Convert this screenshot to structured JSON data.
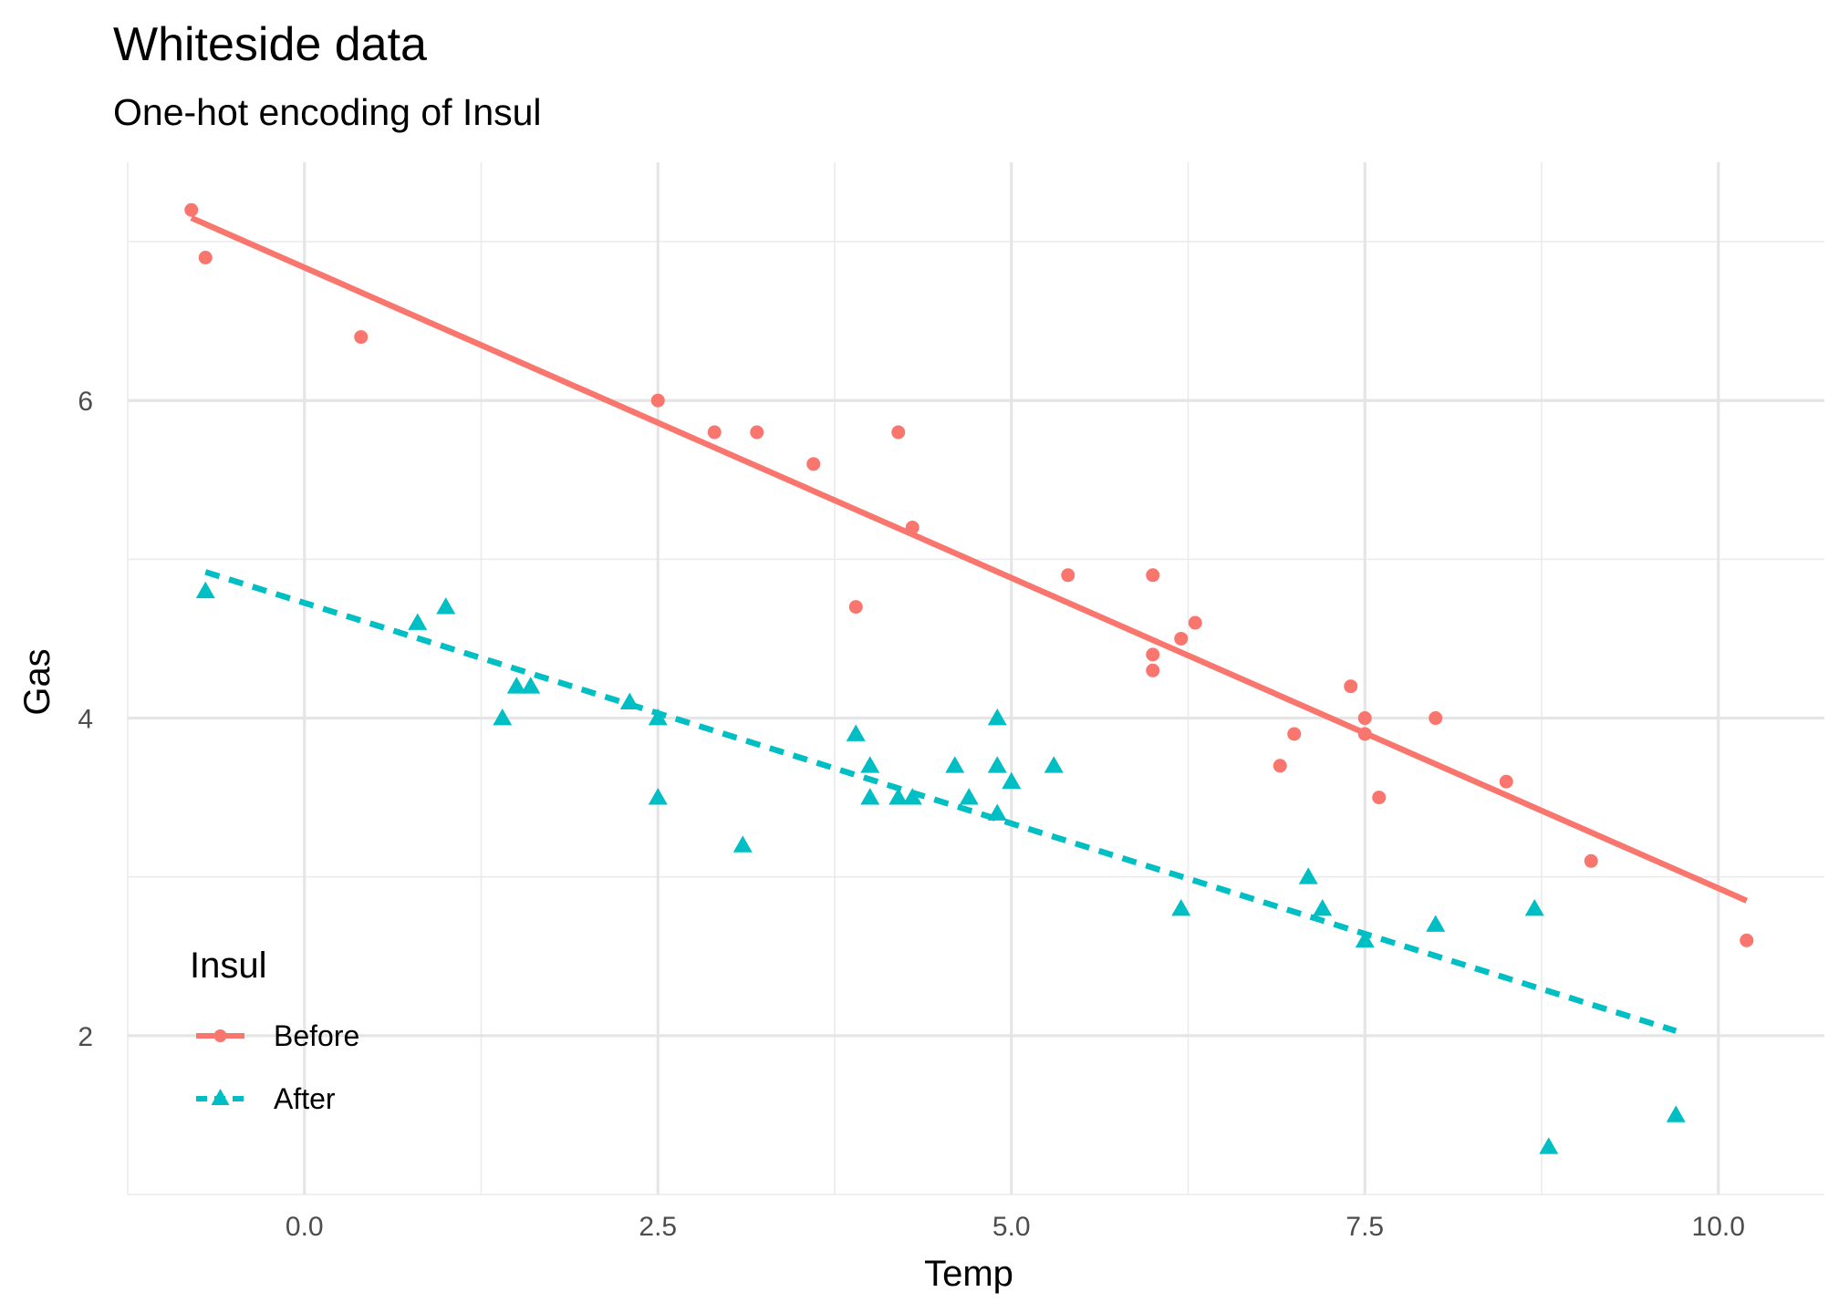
{
  "chart_data": {
    "type": "scatter",
    "title": "Whiteside data",
    "subtitle": "One-hot encoding of Insul",
    "xlabel": "Temp",
    "ylabel": "Gas",
    "xlim": [
      -1.25,
      10.75
    ],
    "ylim": [
      1.0,
      7.5
    ],
    "x_ticks": [
      0.0,
      2.5,
      5.0,
      7.5,
      10.0
    ],
    "x_tick_labels": [
      "0.0",
      "2.5",
      "5.0",
      "7.5",
      "10.0"
    ],
    "y_ticks": [
      2,
      4,
      6
    ],
    "y_tick_labels": [
      "2",
      "4",
      "6"
    ],
    "grid": true,
    "legend": {
      "title": "Insul",
      "position": "bottom-left"
    },
    "series": [
      {
        "name": "Before",
        "color": "#F8766D",
        "marker": "circle",
        "line_style": "solid",
        "points": [
          [
            -0.8,
            7.2
          ],
          [
            -0.7,
            6.9
          ],
          [
            0.4,
            6.4
          ],
          [
            2.5,
            6.0
          ],
          [
            2.9,
            5.8
          ],
          [
            3.2,
            5.8
          ],
          [
            3.6,
            5.6
          ],
          [
            3.9,
            4.7
          ],
          [
            4.2,
            5.8
          ],
          [
            4.3,
            5.2
          ],
          [
            5.4,
            4.9
          ],
          [
            6.0,
            4.9
          ],
          [
            6.0,
            4.3
          ],
          [
            6.0,
            4.4
          ],
          [
            6.2,
            4.5
          ],
          [
            6.3,
            4.6
          ],
          [
            6.9,
            3.7
          ],
          [
            7.0,
            3.9
          ],
          [
            7.4,
            4.2
          ],
          [
            7.5,
            4.0
          ],
          [
            7.5,
            3.9
          ],
          [
            7.6,
            3.5
          ],
          [
            8.0,
            4.0
          ],
          [
            8.5,
            3.6
          ],
          [
            9.1,
            3.1
          ],
          [
            10.2,
            2.6
          ]
        ],
        "fit_line": [
          [
            -0.8,
            7.15
          ],
          [
            10.2,
            2.85
          ]
        ]
      },
      {
        "name": "After",
        "color": "#00BFC4",
        "marker": "triangle",
        "line_style": "dashed",
        "points": [
          [
            -0.7,
            4.8
          ],
          [
            0.8,
            4.6
          ],
          [
            1.0,
            4.7
          ],
          [
            1.4,
            4.0
          ],
          [
            1.5,
            4.2
          ],
          [
            1.6,
            4.2
          ],
          [
            2.3,
            4.1
          ],
          [
            2.5,
            4.0
          ],
          [
            2.5,
            3.5
          ],
          [
            3.1,
            3.2
          ],
          [
            3.9,
            3.9
          ],
          [
            4.0,
            3.7
          ],
          [
            4.0,
            3.5
          ],
          [
            4.2,
            3.5
          ],
          [
            4.3,
            3.5
          ],
          [
            4.6,
            3.7
          ],
          [
            4.7,
            3.5
          ],
          [
            4.9,
            4.0
          ],
          [
            4.9,
            3.7
          ],
          [
            4.9,
            3.4
          ],
          [
            5.0,
            3.6
          ],
          [
            5.3,
            3.7
          ],
          [
            6.2,
            2.8
          ],
          [
            7.1,
            3.0
          ],
          [
            7.2,
            2.8
          ],
          [
            7.5,
            2.6
          ],
          [
            8.0,
            2.7
          ],
          [
            8.7,
            2.8
          ],
          [
            8.8,
            1.3
          ],
          [
            9.7,
            1.5
          ]
        ],
        "fit_line": [
          [
            -0.7,
            4.92
          ],
          [
            9.7,
            2.03
          ]
        ]
      }
    ]
  }
}
